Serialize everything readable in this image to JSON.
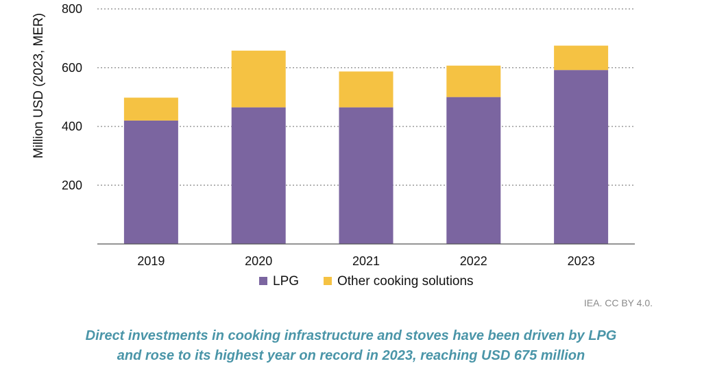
{
  "chart_data": {
    "type": "bar",
    "stacked": true,
    "categories": [
      "2019",
      "2020",
      "2021",
      "2022",
      "2023"
    ],
    "series": [
      {
        "name": "LPG",
        "color": "#7b65a0",
        "values": [
          420,
          465,
          465,
          500,
          592
        ]
      },
      {
        "name": "Other cooking solutions",
        "color": "#f5c243",
        "values": [
          78,
          193,
          122,
          107,
          83
        ]
      }
    ],
    "ylabel": "Million USD (2023, MER)",
    "ylim": [
      0,
      800
    ],
    "yticks": [
      200,
      400,
      600,
      800
    ],
    "grid": "horizontal dotted",
    "legend_position": "bottom"
  },
  "credit": "IEA. CC BY 4.0.",
  "caption": {
    "line1": "Direct investments in cooking infrastructure and stoves have been driven by LPG",
    "line2": "and rose to its highest year on record in 2023, reaching USD 675 million"
  }
}
